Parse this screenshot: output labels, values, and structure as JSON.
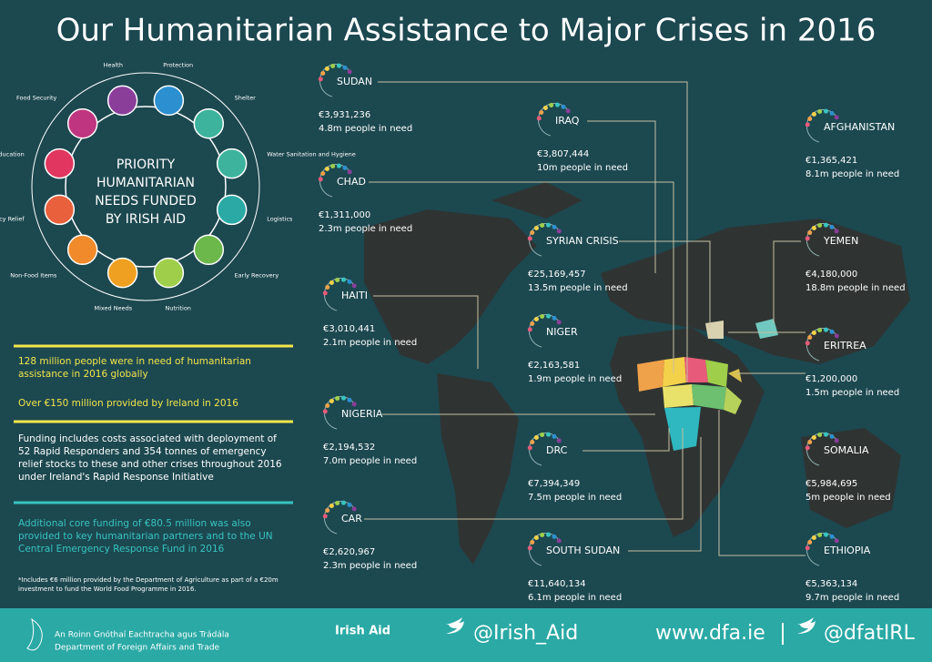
{
  "title": "Our Humanitarian Assistance to Major Crises in 2016",
  "priority_circle": {
    "heading_lines": [
      "PRIORITY",
      "HUMANITARIAN",
      "NEEDS FUNDED",
      "BY IRISH AID"
    ],
    "needs": [
      "Protection",
      "Shelter",
      "Water Sanitation and Hygiene",
      "Logistics",
      "Early Recovery",
      "Nutrition",
      "Mixed Needs",
      "Non-Food Items",
      "Emergency Relief",
      "Education",
      "Food Security",
      "Health"
    ]
  },
  "facts": [
    "128 million people were in need of humanitarian assistance in 2016 globally",
    "Over €150 million provided by Ireland in 2016",
    "Funding includes costs associated with deployment of 52 Rapid Responders and 354 tonnes of emergency relief stocks to these and other crises throughout 2016 under Ireland's Rapid Response Initiative",
    "Additional core funding of €80.5 million was also provided to key humanitarian partners and to the UN Central Emergency Response Fund in 2016",
    "*Includes €6 million provided by the Department of Agriculture as part of a €20m investment to fund the World Food Programme in 2016."
  ],
  "crises": [
    {
      "name": "SUDAN",
      "funding": "€3,931,236",
      "people": "4.8m people in need"
    },
    {
      "name": "CHAD",
      "funding": "€1,311,000",
      "people": "2.3m people in need"
    },
    {
      "name": "HAITI",
      "funding": "€3,010,441",
      "people": "2.1m people in need"
    },
    {
      "name": "NIGERIA",
      "funding": "€2,194,532",
      "people": "7.0m people in need"
    },
    {
      "name": "CAR",
      "funding": "€2,620,967",
      "people": "2.3m people in need"
    },
    {
      "name": "IRAQ",
      "funding": "€3,807,444",
      "people": "10m people in need"
    },
    {
      "name": "SYRIAN CRISIS",
      "funding": "€25,169,457",
      "people": "13.5m people in need"
    },
    {
      "name": "NIGER",
      "funding": "€2,163,581",
      "people": "1.9m people in need"
    },
    {
      "name": "DRC",
      "funding": "€7,394,349",
      "people": "7.5m people in need"
    },
    {
      "name": "SOUTH SUDAN",
      "funding": "€11,640,134",
      "people": "6.1m people in need"
    },
    {
      "name": "AFGHANISTAN",
      "funding": "€1,365,421",
      "people": "8.1m people in need"
    },
    {
      "name": "YEMEN",
      "funding": "€4,180,000",
      "people": "18.8m people in need"
    },
    {
      "name": "ERITREA",
      "funding": "€1,200,000",
      "people": "1.5m people in need"
    },
    {
      "name": "SOMALIA",
      "funding": "€5,984,695",
      "people": "5m people in need"
    },
    {
      "name": "ETHIOPIA",
      "funding": "€5,363,134",
      "people": "9.7m people in need"
    }
  ],
  "footer": {
    "dept_irish": "An Roinn Gnóthaí Eachtracha agus Trádála",
    "dept_english": "Department of Foreign Affairs and Trade",
    "irish_aid": "Irish Aid",
    "twitter_aid": "@Irish_Aid",
    "website": "www.dfa.ie",
    "twitter_dfa": "@dfatIRL"
  }
}
